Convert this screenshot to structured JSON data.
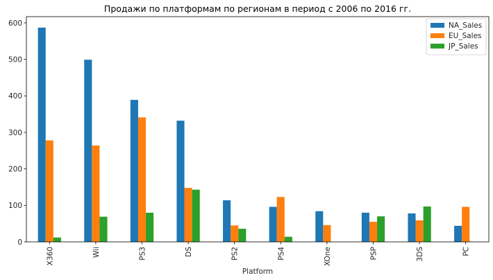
{
  "chart_data": {
    "type": "bar",
    "title": "Продажи по платформам по регионам в период с 2006 по 2016 гг.",
    "xlabel": "Platform",
    "ylabel": "",
    "categories": [
      "X360",
      "Wii",
      "PS3",
      "DS",
      "PS2",
      "PS4",
      "XOne",
      "PSP",
      "3DS",
      "PC"
    ],
    "series": [
      {
        "name": "NA_Sales",
        "color": "#1f77b4",
        "values": [
          587,
          499,
          389,
          332,
          114,
          96,
          84,
          80,
          78,
          44
        ]
      },
      {
        "name": "EU_Sales",
        "color": "#ff7f0e",
        "values": [
          278,
          264,
          341,
          148,
          45,
          123,
          46,
          55,
          59,
          96
        ]
      },
      {
        "name": "JP_Sales",
        "color": "#2ca02c",
        "values": [
          12,
          69,
          80,
          143,
          36,
          14,
          0,
          70,
          97,
          0
        ]
      }
    ],
    "ylim": [
      0,
      617
    ],
    "yticks": [
      0,
      100,
      200,
      300,
      400,
      500,
      600
    ],
    "grid": false,
    "legend_position": "top-right"
  }
}
